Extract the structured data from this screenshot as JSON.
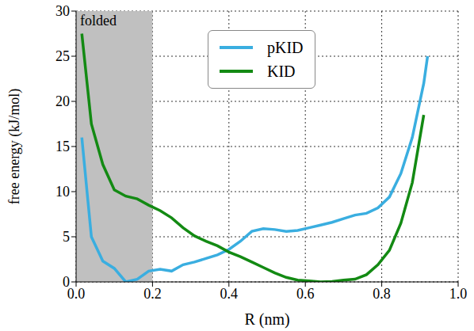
{
  "chart_data": {
    "type": "line",
    "xlabel": "R (nm)",
    "ylabel": "free energy (kJ/mol)",
    "xlim": [
      0,
      1.0
    ],
    "ylim": [
      0,
      30
    ],
    "xticks": [
      {
        "value": 0,
        "label": "0.0"
      },
      {
        "value": 0.2,
        "label": "0.2"
      },
      {
        "value": 0.4,
        "label": "0.4"
      },
      {
        "value": 0.6,
        "label": "0.6"
      },
      {
        "value": 0.8,
        "label": "0.8"
      },
      {
        "value": 1.0,
        "label": "1.0"
      }
    ],
    "yticks": [
      0,
      5,
      10,
      15,
      20,
      25,
      30
    ],
    "grid": true,
    "legend": "top",
    "shaded_region": {
      "x": [
        0,
        0.2
      ],
      "label": "folded"
    },
    "series": [
      {
        "name": "pKID",
        "color": "#3aaee0",
        "x": [
          0.015,
          0.04,
          0.07,
          0.1,
          0.13,
          0.16,
          0.19,
          0.22,
          0.25,
          0.28,
          0.31,
          0.34,
          0.37,
          0.4,
          0.43,
          0.46,
          0.49,
          0.52,
          0.55,
          0.58,
          0.61,
          0.64,
          0.67,
          0.7,
          0.73,
          0.76,
          0.79,
          0.82,
          0.85,
          0.88,
          0.91,
          0.92
        ],
        "values": [
          16,
          5,
          2.3,
          1.5,
          0,
          0.3,
          1.2,
          1.4,
          1.2,
          1.9,
          2.2,
          2.6,
          3.0,
          3.6,
          4.5,
          5.6,
          5.9,
          5.8,
          5.6,
          5.7,
          6.0,
          6.3,
          6.6,
          7.0,
          7.4,
          7.6,
          8.2,
          9.4,
          12.0,
          16.0,
          22.0,
          25
        ]
      },
      {
        "name": "KID",
        "color": "#138a13",
        "x": [
          0.015,
          0.04,
          0.07,
          0.1,
          0.13,
          0.16,
          0.19,
          0.22,
          0.25,
          0.28,
          0.31,
          0.34,
          0.37,
          0.4,
          0.43,
          0.46,
          0.49,
          0.52,
          0.55,
          0.58,
          0.61,
          0.64,
          0.67,
          0.7,
          0.73,
          0.76,
          0.79,
          0.82,
          0.85,
          0.88,
          0.91
        ],
        "values": [
          27.5,
          17.5,
          13,
          10.2,
          9.5,
          9.2,
          8.5,
          7.9,
          7.1,
          6.0,
          5.1,
          4.5,
          4.0,
          3.3,
          2.8,
          2.2,
          1.6,
          1.0,
          0.5,
          0.2,
          0.1,
          0.0,
          0.05,
          0.2,
          0.3,
          0.8,
          1.9,
          3.5,
          6.5,
          11,
          18.5
        ]
      }
    ]
  }
}
